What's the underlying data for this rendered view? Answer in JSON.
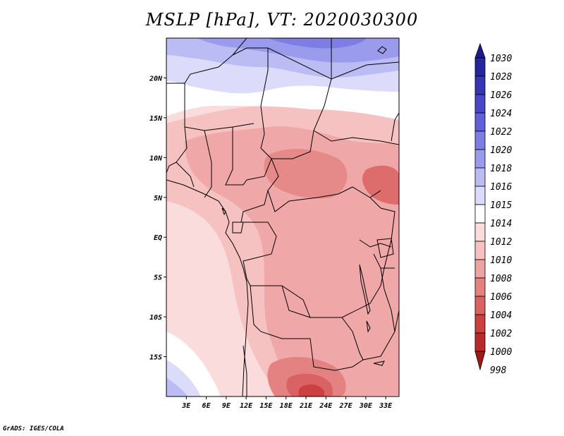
{
  "title": "MSLP [hPa], VT: 2020030300",
  "credit": "GrADS: IGES/COLA",
  "map": {
    "lon_range": [
      0,
      35
    ],
    "lat_range": [
      -20,
      25
    ],
    "lat_labels": [
      "20N",
      "15N",
      "10N",
      "5N",
      "EQ",
      "5S",
      "10S",
      "15S"
    ],
    "lon_labels": [
      "3E",
      "6E",
      "9E",
      "12E",
      "15E",
      "18E",
      "21E",
      "24E",
      "27E",
      "30E",
      "33E"
    ]
  },
  "colorbar": {
    "levels": [
      {
        "label": "1030",
        "color": "#1b1b8f"
      },
      {
        "label": "1028",
        "color": "#25259e"
      },
      {
        "label": "1026",
        "color": "#3535b5"
      },
      {
        "label": "1024",
        "color": "#4848c8"
      },
      {
        "label": "1022",
        "color": "#6060d8"
      },
      {
        "label": "1020",
        "color": "#7d7de4"
      },
      {
        "label": "1018",
        "color": "#9b9bed"
      },
      {
        "label": "1016",
        "color": "#bcbcf4"
      },
      {
        "label": "1015",
        "color": "#dcdcfa"
      },
      {
        "label": "1014",
        "color": "#ffffff"
      },
      {
        "label": "1012",
        "color": "#fbdcdc"
      },
      {
        "label": "1010",
        "color": "#f6c1c1"
      },
      {
        "label": "1008",
        "color": "#eea2a2"
      },
      {
        "label": "1006",
        "color": "#e48282"
      },
      {
        "label": "1004",
        "color": "#d96262"
      },
      {
        "label": "1002",
        "color": "#cc4040"
      },
      {
        "label": "1000",
        "color": "#bb2a2a"
      },
      {
        "label": "998",
        "color": "#a01818"
      }
    ]
  }
}
